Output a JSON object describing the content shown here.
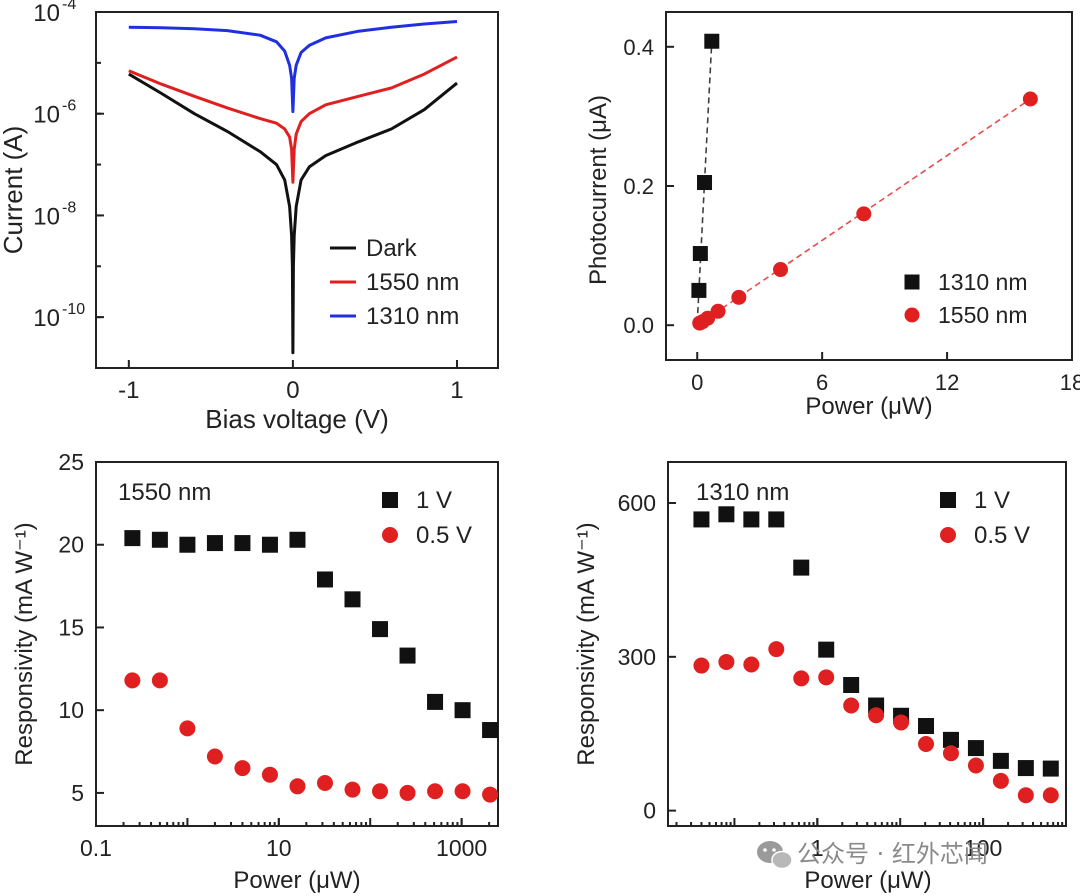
{
  "chart_data": [
    {
      "id": "iv",
      "type": "line",
      "xscale": "linear",
      "yscale": "log",
      "xlim": [
        -1.2,
        1.25
      ],
      "ylim": [
        1e-11,
        0.0001
      ],
      "xlabel": "Bias voltage (V)",
      "ylabel": "Current (A)",
      "xticks": [
        {
          "v": -1,
          "label": "-1"
        },
        {
          "v": 0,
          "label": "0"
        },
        {
          "v": 1,
          "label": "1"
        }
      ],
      "yticks": [
        {
          "v": 0.0001,
          "base": "10",
          "exp": "-4"
        },
        {
          "v": 1e-06,
          "base": "10",
          "exp": "-6"
        },
        {
          "v": 1e-08,
          "base": "10",
          "exp": "-8"
        },
        {
          "v": 1e-10,
          "base": "10",
          "exp": "-10"
        }
      ],
      "legend": "bottom-right",
      "series": [
        {
          "name": "Dark",
          "color": "#111111",
          "x": [
            -1,
            -0.8,
            -0.6,
            -0.4,
            -0.2,
            -0.1,
            -0.05,
            -0.02,
            -0.008,
            -0.003,
            0,
            0.003,
            0.008,
            0.02,
            0.05,
            0.1,
            0.2,
            0.4,
            0.6,
            0.8,
            1
          ],
          "y": [
            6e-06,
            2.5e-06,
            1e-06,
            4.5e-07,
            1.8e-07,
            1e-07,
            5e-08,
            1.5e-08,
            4e-09,
            1e-09,
            2e-11,
            1e-09,
            4e-09,
            1.5e-08,
            5e-08,
            9e-08,
            1.5e-07,
            2.8e-07,
            5e-07,
            1.2e-06,
            4e-06
          ]
        },
        {
          "name": "1550 nm",
          "color": "#e02020",
          "x": [
            -1,
            -0.8,
            -0.6,
            -0.4,
            -0.2,
            -0.1,
            -0.05,
            -0.02,
            -0.008,
            0,
            0.008,
            0.02,
            0.05,
            0.1,
            0.2,
            0.4,
            0.6,
            0.8,
            1
          ],
          "y": [
            7e-06,
            3.8e-06,
            2.2e-06,
            1.3e-06,
            8e-07,
            6.5e-07,
            5e-07,
            3.5e-07,
            2e-07,
            4.5e-08,
            2e-07,
            4e-07,
            7e-07,
            1e-06,
            1.5e-06,
            2.2e-06,
            3.2e-06,
            6e-06,
            1.3e-05
          ]
        },
        {
          "name": "1310 nm",
          "color": "#2030e0",
          "x": [
            -1,
            -0.8,
            -0.6,
            -0.4,
            -0.2,
            -0.1,
            -0.05,
            -0.02,
            -0.008,
            0,
            0.008,
            0.02,
            0.05,
            0.1,
            0.2,
            0.4,
            0.6,
            0.8,
            1
          ],
          "y": [
            5e-05,
            4.9e-05,
            4.7e-05,
            4.3e-05,
            3.5e-05,
            2.6e-05,
            1.7e-05,
            9e-06,
            5e-06,
            1.1e-06,
            5e-06,
            9e-06,
            1.6e-05,
            2.2e-05,
            3.1e-05,
            4.2e-05,
            5e-05,
            5.8e-05,
            6.5e-05
          ]
        }
      ]
    },
    {
      "id": "photocurrent",
      "type": "scatter",
      "xscale": "linear",
      "yscale": "linear",
      "xlim": [
        -1.5,
        18
      ],
      "ylim": [
        -0.05,
        0.45
      ],
      "xlabel": "Power (μW)",
      "ylabel": "Photocurrent (μA)",
      "xticks": [
        {
          "v": 0,
          "label": "0"
        },
        {
          "v": 6,
          "label": "6"
        },
        {
          "v": 12,
          "label": "12"
        },
        {
          "v": 18,
          "label": "18"
        }
      ],
      "yticks": [
        {
          "v": 0,
          "label": "0.0"
        },
        {
          "v": 0.2,
          "label": "0.2"
        },
        {
          "v": 0.4,
          "label": "0.4"
        }
      ],
      "legend": "bottom-right",
      "series": [
        {
          "name": "1310 nm",
          "color": "#111111",
          "marker": "square",
          "x": [
            0.08,
            0.15,
            0.35,
            0.7
          ],
          "y": [
            0.05,
            0.103,
            0.205,
            0.408
          ],
          "fit": [
            [
              0,
              0.003
            ],
            [
              0.7,
              0.408
            ]
          ]
        },
        {
          "name": "1550 nm",
          "color": "#e02020",
          "marker": "circle",
          "x": [
            0.12,
            0.25,
            0.5,
            1,
            2,
            4,
            8,
            16
          ],
          "y": [
            0.003,
            0.005,
            0.01,
            0.02,
            0.04,
            0.08,
            0.16,
            0.325
          ],
          "fit": [
            [
              0,
              0
            ],
            [
              16,
              0.325
            ]
          ]
        }
      ]
    },
    {
      "id": "resp1550",
      "type": "scatter",
      "xscale": "log",
      "yscale": "linear",
      "xlim": [
        0.1,
        2500
      ],
      "ylim": [
        3,
        25
      ],
      "xlabel": "Power (μW)",
      "ylabel": "Responsivity (mA W⁻¹)",
      "annotation": "1550 nm",
      "xticks": [
        {
          "v": 0.1,
          "label": "0.1"
        },
        {
          "v": 10,
          "label": "10"
        },
        {
          "v": 1000,
          "label": "1000"
        }
      ],
      "yticks": [
        {
          "v": 5,
          "label": "5"
        },
        {
          "v": 10,
          "label": "10"
        },
        {
          "v": 15,
          "label": "15"
        },
        {
          "v": 20,
          "label": "20"
        },
        {
          "v": 25,
          "label": "25"
        }
      ],
      "legend": "top-right",
      "series": [
        {
          "name": "1 V",
          "color": "#111111",
          "marker": "square",
          "x": [
            0.25,
            0.5,
            1,
            2,
            4,
            8,
            16,
            32,
            64,
            128,
            256,
            512,
            1024,
            2048
          ],
          "y": [
            20.4,
            20.3,
            20.0,
            20.1,
            20.1,
            20.0,
            20.3,
            17.9,
            16.7,
            14.9,
            13.3,
            10.5,
            10.0,
            8.8
          ]
        },
        {
          "name": "0.5 V",
          "color": "#e02020",
          "marker": "circle",
          "x": [
            0.25,
            0.5,
            1,
            2,
            4,
            8,
            16,
            32,
            64,
            128,
            256,
            512,
            1024,
            2048
          ],
          "y": [
            11.8,
            11.8,
            8.9,
            7.2,
            6.5,
            6.1,
            5.4,
            5.6,
            5.2,
            5.1,
            5.0,
            5.1,
            5.1,
            4.9
          ]
        }
      ]
    },
    {
      "id": "resp1310",
      "type": "scatter",
      "xscale": "log",
      "yscale": "linear",
      "xlim": [
        0.0158,
        1000
      ],
      "ylim": [
        -30,
        680
      ],
      "xlabel": "Power (μW)",
      "ylabel": "Responsivity (mA W⁻¹)",
      "annotation": "1310 nm",
      "xticks": [
        {
          "v": 1,
          "label": "1"
        },
        {
          "v": 100,
          "label": "100"
        }
      ],
      "yticks": [
        {
          "v": 0,
          "label": "0"
        },
        {
          "v": 300,
          "label": "300"
        },
        {
          "v": 600,
          "label": "600"
        }
      ],
      "legend": "top-right",
      "series": [
        {
          "name": "1 V",
          "color": "#111111",
          "marker": "square",
          "x": [
            0.04,
            0.08,
            0.16,
            0.32,
            0.64,
            1.28,
            2.56,
            5.12,
            10.24,
            20.48,
            40.96,
            81.92,
            163.84,
            327.68,
            655.36
          ],
          "y": [
            568,
            578,
            568,
            568,
            474,
            314,
            245,
            205,
            185,
            165,
            138,
            122,
            97,
            83,
            82
          ]
        },
        {
          "name": "0.5 V",
          "color": "#e02020",
          "marker": "circle",
          "x": [
            0.04,
            0.08,
            0.16,
            0.32,
            0.64,
            1.28,
            2.56,
            5.12,
            10.24,
            20.48,
            40.96,
            81.92,
            163.84,
            327.68,
            655.36
          ],
          "y": [
            283,
            290,
            285,
            315,
            258,
            260,
            205,
            186,
            172,
            130,
            112,
            88,
            58,
            30,
            30
          ]
        }
      ]
    }
  ],
  "watermark": {
    "text": "公众号 · 红外芯闻",
    "icon": "wechat-icon"
  }
}
